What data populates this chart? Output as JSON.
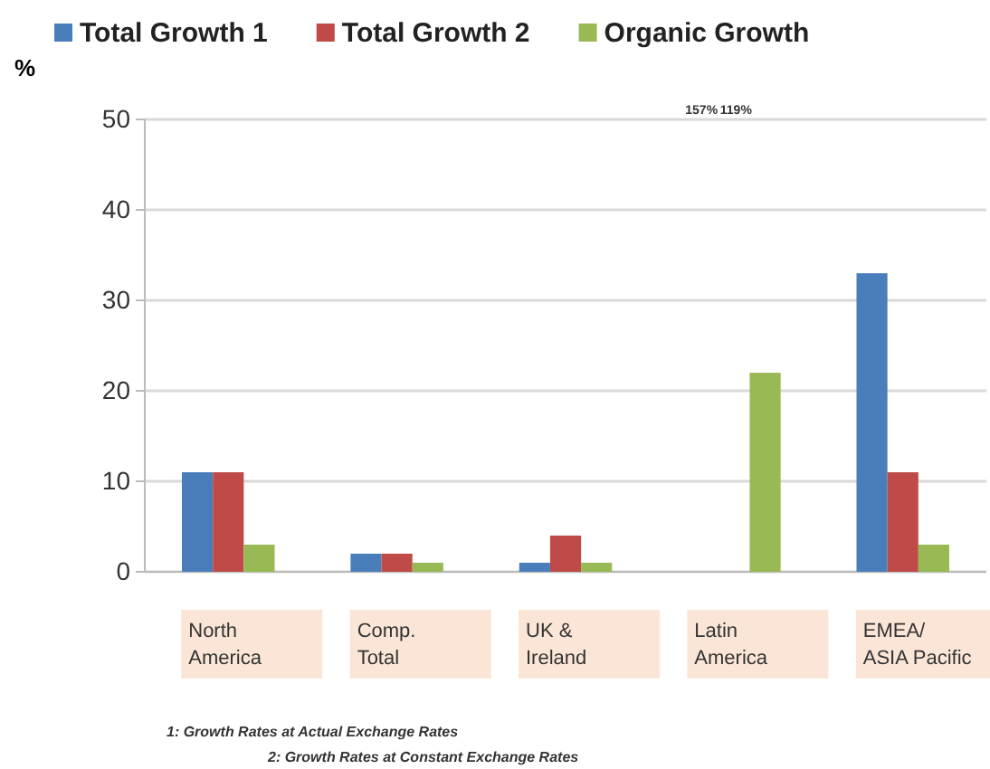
{
  "chart_data": {
    "type": "bar",
    "ylabel": "%",
    "categories": [
      "North America",
      "Comp. Total",
      "UK & Ireland",
      "Latin America",
      "EMEA/ ASIA Pacific"
    ],
    "series": [
      {
        "name": "Total Growth 1",
        "color": "#4a7ebb",
        "values": [
          11,
          2,
          1,
          null,
          33
        ]
      },
      {
        "name": "Total Growth 2",
        "color": "#be4b48",
        "values": [
          11,
          2,
          4,
          null,
          11
        ]
      },
      {
        "name": "Organic Growth",
        "color": "#98b954",
        "values": [
          3,
          1,
          1,
          22,
          3
        ]
      }
    ],
    "ylim": [
      0,
      50
    ],
    "yticks": [
      0,
      10,
      20,
      30,
      40,
      50
    ],
    "grid": "y",
    "legend": "top",
    "annotations": [
      "157%",
      "119%",
      "1: Growth Rates at Actual Exchange Rates",
      "2: Growth Rates at Constant Exchange Rates"
    ]
  }
}
